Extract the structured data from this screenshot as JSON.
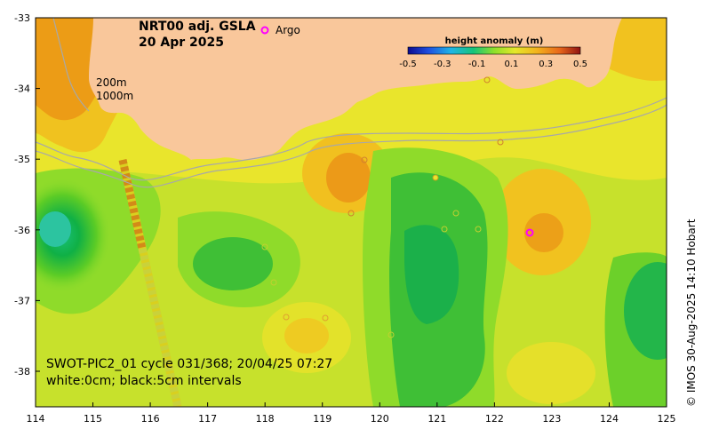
{
  "map": {
    "title_line1": "NRT00 adj. GSLA",
    "title_line2": "20 Apr 2025",
    "argo_label": "Argo",
    "depth_label_1": "200m",
    "depth_label_2": "1000m",
    "swot_line1": "SWOT-PIC2_01 cycle 031/368; 20/04/25 07:27",
    "swot_line2": "white:0cm; black:5cm intervals",
    "credit": "© IMOS 30-Aug-2025 14:10 Hobart",
    "colorbar": {
      "title": "height anomaly (m)",
      "ticks": [
        "-0.5",
        "-0.3",
        "-0.1",
        "0.1",
        "0.3",
        "0.5"
      ]
    },
    "x_ticks": [
      "114",
      "115",
      "116",
      "117",
      "118",
      "119",
      "120",
      "121",
      "122",
      "123",
      "124",
      "125"
    ],
    "y_ticks": [
      "-33",
      "-34",
      "-35",
      "-36",
      "-37",
      "-38"
    ],
    "colors": {
      "land": "#f9c79b",
      "argo": "#ff00ff",
      "contour_depth": "#a8a8a8"
    }
  }
}
